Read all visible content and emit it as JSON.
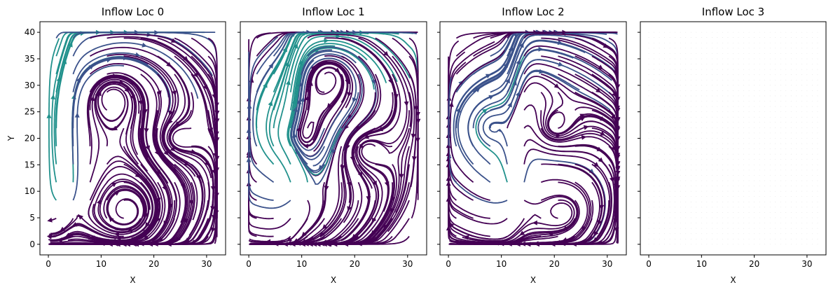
{
  "chart_data": [
    {
      "type": "streamplot",
      "title": "Inflow Loc 0",
      "xlabel": "X",
      "ylabel": "Y",
      "xlim": [
        -1.6,
        33.6
      ],
      "ylim": [
        -2,
        42
      ],
      "xticks": [
        0,
        10,
        20,
        30
      ],
      "yticks": [
        0,
        5,
        10,
        15,
        20,
        25,
        30,
        35,
        40
      ],
      "inflow": {
        "x": 3,
        "y": 8
      },
      "vortices": [
        {
          "x": 12,
          "y": 28,
          "s": 1
        },
        {
          "x": 24,
          "y": 20,
          "s": -1
        },
        {
          "x": 15,
          "y": 6,
          "s": 1
        }
      ],
      "colormap": [
        "#440154",
        "#3b528b",
        "#21918c",
        "#5ec962"
      ],
      "draw_streamlines": true
    },
    {
      "type": "streamplot",
      "title": "Inflow Loc 1",
      "xlabel": "X",
      "ylabel": "",
      "xlim": [
        -1.6,
        33.6
      ],
      "ylim": [
        -2,
        42
      ],
      "xticks": [
        0,
        10,
        20,
        30
      ],
      "yticks": [
        0,
        5,
        10,
        15,
        20,
        25,
        30,
        35,
        40
      ],
      "inflow": {
        "x": 8.5,
        "y": 9
      },
      "vortices": [
        {
          "x": 8,
          "y": 20,
          "s": 1
        },
        {
          "x": 22,
          "y": 18,
          "s": -1
        },
        {
          "x": 15,
          "y": 32,
          "s": 1
        }
      ],
      "colormap": [
        "#440154",
        "#3b528b",
        "#21918c",
        "#5ec962"
      ],
      "draw_streamlines": true
    },
    {
      "type": "streamplot",
      "title": "Inflow Loc 2",
      "xlabel": "X",
      "ylabel": "",
      "xlim": [
        -1.6,
        33.6
      ],
      "ylim": [
        -2,
        42
      ],
      "xticks": [
        0,
        10,
        20,
        30
      ],
      "yticks": [
        0,
        5,
        10,
        15,
        20,
        25,
        30,
        35,
        40
      ],
      "inflow": {
        "x": 12.5,
        "y": 9
      },
      "vortices": [
        {
          "x": 8,
          "y": 22,
          "s": 1
        },
        {
          "x": 20,
          "y": 22,
          "s": -1
        },
        {
          "x": 22,
          "y": 6,
          "s": 1
        }
      ],
      "colormap": [
        "#440154",
        "#3b528b",
        "#21918c",
        "#5ec962"
      ],
      "draw_streamlines": true
    },
    {
      "type": "streamplot",
      "title": "Inflow Loc 3",
      "xlabel": "X",
      "ylabel": "",
      "xlim": [
        -1.6,
        33.6
      ],
      "ylim": [
        -2,
        42
      ],
      "xticks": [
        0,
        10,
        20,
        30
      ],
      "yticks": [
        0,
        5,
        10,
        15,
        20,
        25,
        30,
        35,
        40
      ],
      "draw_streamlines": false,
      "grid_dots": true
    }
  ]
}
